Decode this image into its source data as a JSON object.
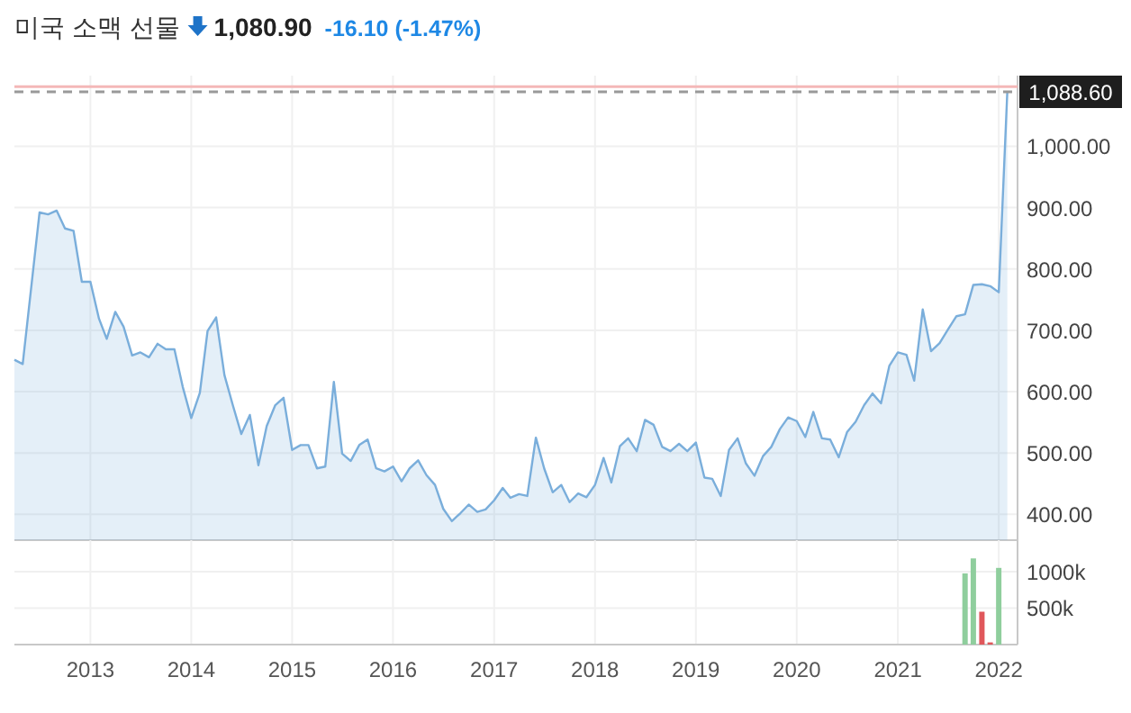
{
  "chart_data": [
    {
      "type": "area",
      "title": "미국 소맥 선물",
      "annotations": [
        "1,080.90",
        "-16.10 (-1.47%)"
      ],
      "x": [
        "2012-04",
        "2012-05",
        "2012-07",
        "2012-08",
        "2012-09",
        "2012-10",
        "2012-11",
        "2012-12",
        "2013-01",
        "2013-02",
        "2013-03",
        "2013-04",
        "2013-05",
        "2013-06",
        "2013-07",
        "2013-08",
        "2013-09",
        "2013-10",
        "2013-11",
        "2013-12",
        "2014-01",
        "2014-02",
        "2014-03",
        "2014-04",
        "2014-05",
        "2014-06",
        "2014-07",
        "2014-08",
        "2014-09",
        "2014-10",
        "2014-11",
        "2014-12",
        "2015-01",
        "2015-02",
        "2015-03",
        "2015-04",
        "2015-05",
        "2015-06",
        "2015-07",
        "2015-08",
        "2015-09",
        "2015-10",
        "2015-11",
        "2015-12",
        "2016-01",
        "2016-02",
        "2016-03",
        "2016-04",
        "2016-05",
        "2016-06",
        "2016-07",
        "2016-08",
        "2016-09",
        "2016-10",
        "2016-11",
        "2016-12",
        "2017-01",
        "2017-02",
        "2017-03",
        "2017-04",
        "2017-05",
        "2017-06",
        "2017-07",
        "2017-08",
        "2017-09",
        "2017-10",
        "2017-11",
        "2017-12",
        "2018-01",
        "2018-02",
        "2018-03",
        "2018-04",
        "2018-05",
        "2018-06",
        "2018-07",
        "2018-08",
        "2018-09",
        "2018-10",
        "2018-11",
        "2018-12",
        "2019-01",
        "2019-02",
        "2019-03",
        "2019-04",
        "2019-05",
        "2019-06",
        "2019-07",
        "2019-08",
        "2019-09",
        "2019-10",
        "2019-11",
        "2019-12",
        "2020-01",
        "2020-02",
        "2020-03",
        "2020-04",
        "2020-05",
        "2020-06",
        "2020-07",
        "2020-08",
        "2020-09",
        "2020-10",
        "2020-11",
        "2020-12",
        "2021-01",
        "2021-02",
        "2021-03",
        "2021-04",
        "2021-05",
        "2021-06",
        "2021-07",
        "2021-08",
        "2021-09",
        "2021-10",
        "2021-11",
        "2021-12",
        "2022-01",
        "2022-02"
      ],
      "values": [
        652,
        645,
        892,
        889,
        895,
        866,
        862,
        779,
        779,
        719,
        686,
        730,
        706,
        659,
        664,
        656,
        678,
        669,
        669,
        608,
        557,
        598,
        699,
        721,
        627,
        577,
        531,
        562,
        480,
        544,
        578,
        590,
        505,
        513,
        513,
        475,
        478,
        616,
        499,
        487,
        513,
        522,
        475,
        470,
        478,
        454,
        475,
        488,
        464,
        448,
        409,
        389,
        402,
        416,
        404,
        408,
        423,
        443,
        427,
        433,
        430,
        525,
        475,
        436,
        448,
        420,
        434,
        428,
        448,
        492,
        452,
        511,
        524,
        503,
        554,
        546,
        510,
        503,
        515,
        503,
        517,
        460,
        458,
        430,
        505,
        524,
        483,
        463,
        495,
        510,
        539,
        558,
        552,
        526,
        567,
        524,
        522,
        493,
        534,
        551,
        578,
        597,
        581,
        642,
        664,
        660,
        618,
        734,
        666,
        679,
        701,
        723,
        726,
        774,
        775,
        772,
        762,
        1088.6
      ],
      "color": "#7aaedb",
      "xlim": [
        "2012-04-01",
        "2022-03-10"
      ],
      "xticks": [
        {
          "value": "2013",
          "label": null
        },
        {
          "value": "2014",
          "label": null
        },
        {
          "value": "2015",
          "label": null
        },
        {
          "value": "2016",
          "label": null
        },
        {
          "value": "2017",
          "label": null
        },
        {
          "value": "2018",
          "label": null
        },
        {
          "value": "2019",
          "label": null
        },
        {
          "value": "2020",
          "label": null
        },
        {
          "value": "2021",
          "label": null
        },
        {
          "value": "2022",
          "label": null
        }
      ],
      "ylim": [
        358,
        1115
      ],
      "yticks": [
        {
          "value": 400,
          "label": "400.00"
        },
        {
          "value": 500,
          "label": "500.00"
        },
        {
          "value": 600,
          "label": "600.00"
        },
        {
          "value": 700,
          "label": "700.00"
        },
        {
          "value": 800,
          "label": "800.00"
        },
        {
          "value": 900,
          "label": "900.00"
        },
        {
          "value": 1000,
          "label": "1,000.00"
        }
      ],
      "grid": true,
      "tick_labels": "y",
      "ref_lines": [
        {
          "axis": "y",
          "value": 1097,
          "label": null,
          "color": "#f4b8b8",
          "line_style": "solid"
        },
        {
          "axis": "y",
          "value": 1088.6,
          "label": "1,088.60",
          "color": "#999999",
          "line_style": "dashed"
        }
      ]
    },
    {
      "type": "bar",
      "x": [
        "2021-09",
        "2021-10",
        "2021-11",
        "2021-12",
        "2022-01"
      ],
      "values": [
        975000,
        1180000,
        450000,
        30000,
        1050000
      ],
      "colors": [
        "#8fce9d",
        "#8fce9d",
        "#e0575b",
        "#e0575b",
        "#8fce9d"
      ],
      "xlim": [
        "2012-04-01",
        "2022-03-10"
      ],
      "xticks": [
        {
          "value": "2013",
          "label": "2013"
        },
        {
          "value": "2014",
          "label": "2014"
        },
        {
          "value": "2015",
          "label": "2015"
        },
        {
          "value": "2016",
          "label": "2016"
        },
        {
          "value": "2017",
          "label": "2017"
        },
        {
          "value": "2018",
          "label": "2018"
        },
        {
          "value": "2019",
          "label": "2019"
        },
        {
          "value": "2020",
          "label": "2020"
        },
        {
          "value": "2021",
          "label": "2021"
        },
        {
          "value": "2022",
          "label": "2022"
        }
      ],
      "ylim": [
        0,
        1430000
      ],
      "yticks": [
        {
          "value": 500000,
          "label": "500k"
        },
        {
          "value": 1000000,
          "label": "1000k"
        }
      ],
      "grid": true
    }
  ]
}
